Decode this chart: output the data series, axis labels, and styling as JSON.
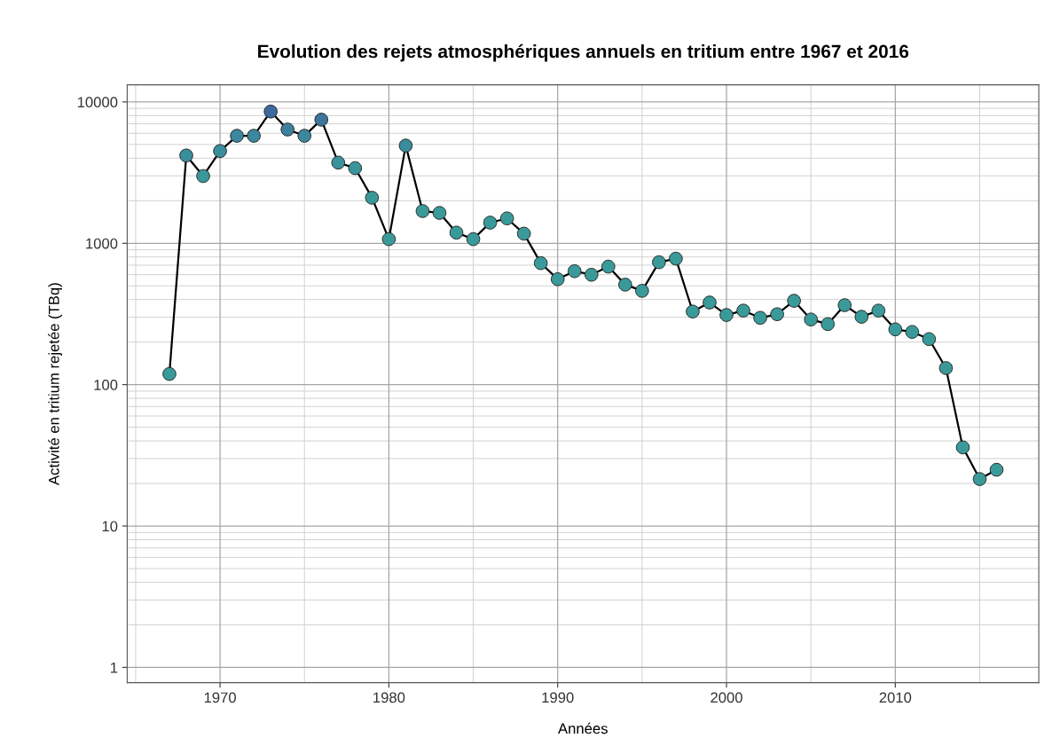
{
  "chart_data": {
    "type": "line",
    "title": "Evolution des rejets atmosphériques annuels en tritium entre 1967 et 2016",
    "xlabel": "Années",
    "ylabel": "Activité en tritium rejetée (TBq)",
    "x": [
      1967,
      1968,
      1969,
      1970,
      1971,
      1972,
      1973,
      1974,
      1975,
      1976,
      1977,
      1978,
      1979,
      1980,
      1981,
      1982,
      1983,
      1984,
      1985,
      1986,
      1987,
      1988,
      1989,
      1990,
      1991,
      1992,
      1993,
      1994,
      1995,
      1996,
      1997,
      1998,
      1999,
      2000,
      2001,
      2002,
      2003,
      2004,
      2005,
      2006,
      2007,
      2008,
      2009,
      2010,
      2011,
      2012,
      2013,
      2014,
      2015,
      2016
    ],
    "series": [
      {
        "color": "#000000",
        "values": [
          119,
          4180,
          2990,
          4490,
          5760,
          5760,
          8550,
          6380,
          5760,
          7490,
          3720,
          3400,
          2100,
          1070,
          4910,
          1690,
          1640,
          1190,
          1070,
          1400,
          1500,
          1170,
          724,
          557,
          635,
          599,
          684,
          510,
          461,
          735,
          779,
          329,
          381,
          311,
          334,
          297,
          315,
          392,
          289,
          268,
          365,
          302,
          334,
          246,
          236,
          210,
          131,
          36,
          21.5,
          25
        ],
        "colors": [
          "#3a9a9a",
          "#3a8f9c",
          "#3a979a",
          "#3a8e9c",
          "#3b879d",
          "#3b879d",
          "#3c6a9c",
          "#3c809d",
          "#3b879d",
          "#3c769d",
          "#3a929b",
          "#3a949b",
          "#3a989a",
          "#3a9a9a",
          "#3a8c9c",
          "#3a9a9a",
          "#3a9a9a",
          "#3a9a9a",
          "#3a9a9a",
          "#3a9a9a",
          "#3a9a9a",
          "#3a9a9a",
          "#3a9a9a",
          "#3a9a9a",
          "#3a9a9a",
          "#3a9a9a",
          "#3a9a9a",
          "#3a9a9a",
          "#3a9a9a",
          "#3a9a9a",
          "#3a9a9a",
          "#3a9a9a",
          "#3a9a9a",
          "#3a9a9a",
          "#3a9a9a",
          "#3a9a9a",
          "#3a9a9a",
          "#3a9a9a",
          "#3a9a9a",
          "#3a9a9a",
          "#3a9a9a",
          "#3a9a9a",
          "#3a9a9a",
          "#3a9a9a",
          "#3a9a9a",
          "#3a9a9a",
          "#3a9a9a",
          "#3a9a9a",
          "#3a9a9a",
          "#3a9a9a"
        ]
      }
    ],
    "log": "y",
    "xlim": [
      1964.5,
      2018.5
    ],
    "ylim": [
      0.78,
      13200
    ],
    "xticks": [
      1970,
      1980,
      1990,
      2000,
      2010
    ],
    "yticks": [
      1,
      10,
      100,
      1000,
      10000
    ],
    "grid": true,
    "marker": "circle",
    "line_style": "solid"
  }
}
